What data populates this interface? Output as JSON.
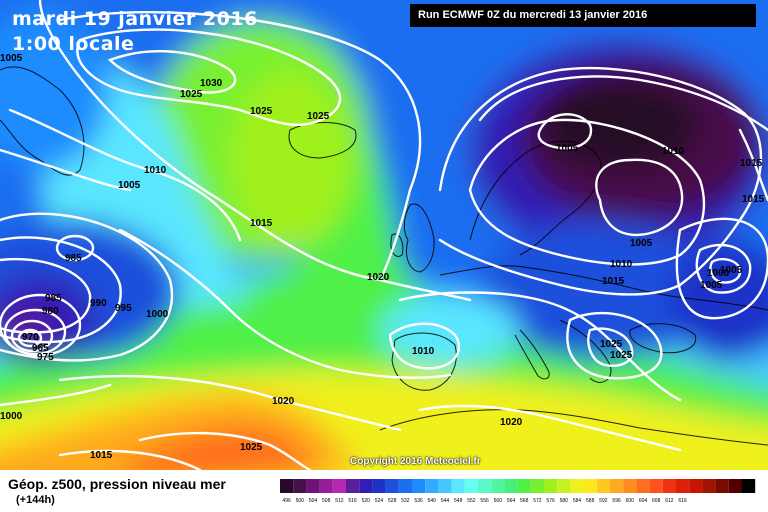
{
  "title": {
    "date_line": "mardi 19 janvier 2016",
    "time_line": "1:00 locale"
  },
  "run_info": "Run ECMWF 0Z du mercredi 13 janvier 2016",
  "copyright": "Copyright 2016 Meteociel.fr",
  "footer": {
    "title": "Géop. z500, pression niveau mer",
    "subtitle": "(+144h)"
  },
  "colors": {
    "scale": [
      "#280a28",
      "#46104a",
      "#6e1478",
      "#961e96",
      "#b428b4",
      "#5a1e9a",
      "#321eb4",
      "#1e32c8",
      "#1e50dc",
      "#1e6ef0",
      "#1e8cff",
      "#32aaff",
      "#46c8ff",
      "#5ae6ff",
      "#64fff0",
      "#5afac8",
      "#50f5a0",
      "#46f078",
      "#50f046",
      "#78f032",
      "#a0f01e",
      "#c8f01e",
      "#f0f01e",
      "#ffe61e",
      "#ffc81e",
      "#ffaa1e",
      "#ff8c1e",
      "#ff6e1e",
      "#ff501e",
      "#f03214",
      "#dc1e0a",
      "#c81400",
      "#a01400",
      "#780a00",
      "#500000",
      "#000000"
    ]
  },
  "legend_labels": [
    "496",
    "500",
    "504",
    "508",
    "512",
    "516",
    "520",
    "524",
    "528",
    "532",
    "536",
    "540",
    "544",
    "548",
    "552",
    "556",
    "560",
    "564",
    "568",
    "572",
    "576",
    "580",
    "584",
    "588",
    "592",
    "596",
    "600",
    "604",
    "608",
    "612",
    "616"
  ],
  "isobar_labels": [
    {
      "text": "1030"
    },
    {
      "text": "1025"
    },
    {
      "text": "1025"
    },
    {
      "text": "1025"
    },
    {
      "text": "1010"
    },
    {
      "text": "1005"
    },
    {
      "text": "1015"
    },
    {
      "text": "1020"
    },
    {
      "text": "985"
    },
    {
      "text": "985"
    },
    {
      "text": "980"
    },
    {
      "text": "970"
    },
    {
      "text": "965"
    },
    {
      "text": "975"
    },
    {
      "text": "990"
    },
    {
      "text": "995"
    },
    {
      "text": "1000"
    },
    {
      "text": "1000"
    },
    {
      "text": "1020"
    },
    {
      "text": "1015"
    },
    {
      "text": "1025"
    },
    {
      "text": "1010"
    },
    {
      "text": "1020"
    },
    {
      "text": "1005"
    },
    {
      "text": "1010"
    },
    {
      "text": "1015"
    },
    {
      "text": "1005"
    },
    {
      "text": "1010"
    },
    {
      "text": "1015"
    },
    {
      "text": "1025"
    },
    {
      "text": "1025"
    },
    {
      "text": "1000"
    },
    {
      "text": "1005"
    },
    {
      "text": "1005"
    },
    {
      "text": "1015"
    },
    {
      "text": "1005"
    }
  ]
}
